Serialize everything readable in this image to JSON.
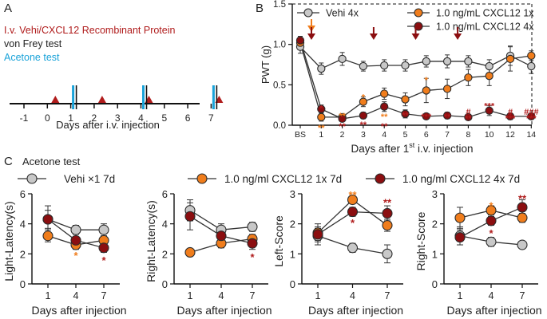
{
  "panels": {
    "a": "A",
    "b": "B",
    "c": "C"
  },
  "timeline": {
    "legend": [
      {
        "text": "I.v. Vehi/CXCL12 Recombinant Protein",
        "color": "#b01c1c"
      },
      {
        "text": "von Frey test",
        "color": "#222222"
      },
      {
        "text": "Acetone test",
        "color": "#1aa3d9"
      }
    ],
    "ticks": [
      "-1",
      "0",
      "1",
      "2",
      "3",
      "4",
      "5",
      "6",
      "7"
    ],
    "injection_days": [
      0,
      2,
      4,
      7
    ],
    "vonfrey_days": [
      1,
      4,
      7
    ],
    "xlabel": "Days after i.v. injection"
  },
  "colors": {
    "vehi": "#c8c8c8",
    "cx1": "#f07d1c",
    "cx4": "#8b0e10",
    "star_orange": "#f07d1c",
    "star_red": "#b01c1c",
    "acetone": "#1aa3d9",
    "injection": "#b01c1c"
  },
  "acetone_title": "Acetone test",
  "legend_c": [
    {
      "key": "vehi",
      "label": "Vehi ×1 7d"
    },
    {
      "key": "cx1",
      "label": "1.0 ng/ml CXCL12 1x 7d"
    },
    {
      "key": "cx4",
      "label": "1.0 ng/ml CXCL12 4x 7d"
    }
  ],
  "chart_data": [
    {
      "id": "pwt",
      "type": "line",
      "title": "",
      "categories": [
        "BS",
        "1",
        "2",
        "3",
        "4",
        "5",
        "6",
        "7",
        "8",
        "10",
        "12",
        "14"
      ],
      "xlabel_prefix": "Days after 1",
      "xlabel_sup": "st",
      "xlabel_suffix": " i.v. injection",
      "ylabel": "PWT (g)",
      "ylim": [
        0,
        1.5
      ],
      "yticks": [
        "0.0",
        "0.5",
        "1.0",
        "1.5"
      ],
      "legend": [
        {
          "key": "vehi",
          "label": "Vehi 4x"
        },
        {
          "key": "cx1",
          "label": "1.0 ng/mL CXCL12 1x"
        },
        {
          "key": "cx4",
          "label": "1.0 ng/mL CXCL12 4x"
        }
      ],
      "series": [
        {
          "key": "vehi",
          "name": "Vehi 4x",
          "values": [
            0.97,
            0.7,
            0.82,
            0.73,
            0.74,
            0.74,
            0.79,
            0.79,
            0.79,
            0.73,
            0.86,
            0.73
          ],
          "errors": [
            0.08,
            0.07,
            0.08,
            0.06,
            0.07,
            0.07,
            0.07,
            0.08,
            0.07,
            0.08,
            0.12,
            0.09
          ]
        },
        {
          "key": "cx1",
          "name": "1.0 ng/mL CXCL12 1x",
          "values": [
            1.02,
            0.1,
            0.1,
            0.29,
            0.39,
            0.32,
            0.43,
            0.45,
            0.59,
            0.61,
            0.82,
            0.86
          ],
          "errors": [
            0.06,
            0.05,
            0.04,
            0.06,
            0.07,
            0.08,
            0.15,
            0.12,
            0.1,
            0.12,
            0.15,
            0.06
          ]
        },
        {
          "key": "cx4",
          "name": "1.0 ng/mL CXCL12 4x",
          "values": [
            1.05,
            0.2,
            0.08,
            0.12,
            0.23,
            0.14,
            0.11,
            0.12,
            0.1,
            0.18,
            0.11,
            0.11
          ],
          "errors": [
            0.05,
            0.05,
            0.03,
            0.04,
            0.06,
            0.05,
            0.03,
            0.04,
            0.03,
            0.06,
            0.04,
            0.03
          ]
        }
      ],
      "injection_arrows": [
        {
          "category": "BS",
          "color": "#f07d1c"
        },
        {
          "category": "BS",
          "color": "#8b0e10"
        },
        {
          "category": "3",
          "color": "#8b0e10"
        },
        {
          "category": "5",
          "color": "#8b0e10"
        },
        {
          "category": "7",
          "color": "#8b0e10"
        }
      ],
      "annotations": [
        {
          "category": "1",
          "y": 0.22,
          "text": "*",
          "color": "#b01c1c"
        },
        {
          "category": "1",
          "y": -0.02,
          "text": "**",
          "color": "#f07d1c"
        },
        {
          "category": "2",
          "y": 0.13,
          "text": "**",
          "color": "#f07d1c"
        },
        {
          "category": "2",
          "y": 0.0,
          "text": "**",
          "color": "#b01c1c"
        },
        {
          "category": "3",
          "y": 0.36,
          "text": "*",
          "color": "#f07d1c"
        },
        {
          "category": "3",
          "y": 0.02,
          "text": "**",
          "color": "#b01c1c"
        },
        {
          "category": "4",
          "y": 0.12,
          "text": "**",
          "color": "#f07d1c"
        },
        {
          "category": "4",
          "y": 0.0,
          "text": "**",
          "color": "#b01c1c"
        },
        {
          "category": "5",
          "y": 0.14,
          "text": "**",
          "color": "#b01c1c"
        },
        {
          "category": "6",
          "y": 0.57,
          "text": "*",
          "color": "#f07d1c"
        },
        {
          "category": "6",
          "y": 0.12,
          "text": "***",
          "color": "#b01c1c"
        },
        {
          "category": "7",
          "y": 0.12,
          "text": "**",
          "color": "#b01c1c"
        },
        {
          "category": "8",
          "y": 0.18,
          "text": "#",
          "color": "#b01c1c"
        },
        {
          "category": "8",
          "y": 0.1,
          "text": "**",
          "color": "#b01c1c"
        },
        {
          "category": "10",
          "y": 0.25,
          "text": "***",
          "color": "#b01c1c"
        },
        {
          "category": "12",
          "y": 0.18,
          "text": "#",
          "color": "#b01c1c"
        },
        {
          "category": "12",
          "y": 0.1,
          "text": "***",
          "color": "#b01c1c"
        },
        {
          "category": "14",
          "y": 0.18,
          "text": "###",
          "color": "#b01c1c"
        },
        {
          "category": "14",
          "y": 0.1,
          "text": "***",
          "color": "#b01c1c"
        }
      ]
    },
    {
      "id": "light_latency",
      "type": "line",
      "categories": [
        "1",
        "4",
        "7"
      ],
      "xlabel": "Days after injection",
      "ylabel": "Light-Latency(s)",
      "ylim": [
        0,
        6
      ],
      "yticks": [
        "0",
        "2",
        "4",
        "6"
      ],
      "series": [
        {
          "key": "vehi",
          "values": [
            4.3,
            3.6,
            3.6
          ],
          "errors": [
            0.9,
            0.3,
            0.4
          ]
        },
        {
          "key": "cx1",
          "values": [
            3.2,
            2.6,
            2.9
          ],
          "errors": [
            0.4,
            0.3,
            0.3
          ]
        },
        {
          "key": "cx4",
          "values": [
            4.3,
            2.9,
            2.4
          ],
          "errors": [
            0.6,
            0.4,
            0.3
          ]
        }
      ],
      "annotations": [
        {
          "category": "4",
          "y": 1.9,
          "text": "*",
          "color": "#f07d1c"
        },
        {
          "category": "7",
          "y": 1.6,
          "text": "*",
          "color": "#b01c1c"
        }
      ]
    },
    {
      "id": "right_latency",
      "type": "line",
      "categories": [
        "1",
        "4",
        "7"
      ],
      "xlabel": "Days after injection",
      "ylabel": "Right-Latency(s)",
      "ylim": [
        0,
        6
      ],
      "yticks": [
        "0",
        "2",
        "4",
        "6"
      ],
      "series": [
        {
          "key": "vehi",
          "values": [
            4.9,
            3.6,
            3.8
          ],
          "errors": [
            0.7,
            0.4,
            0.3
          ]
        },
        {
          "key": "cx1",
          "values": [
            2.1,
            2.7,
            3.0
          ],
          "errors": [
            0.1,
            0.3,
            0.3
          ]
        },
        {
          "key": "cx4",
          "values": [
            4.5,
            3.2,
            2.7
          ],
          "errors": [
            0.9,
            0.5,
            0.4
          ]
        }
      ],
      "annotations": [
        {
          "category": "7",
          "y": 1.8,
          "text": "*",
          "color": "#b01c1c"
        }
      ]
    },
    {
      "id": "left_score",
      "type": "line",
      "categories": [
        "1",
        "4",
        "7"
      ],
      "xlabel": "Days after injection",
      "ylabel": "Left-Score",
      "ylim": [
        0,
        3
      ],
      "yticks": [
        "0",
        "1",
        "2",
        "3"
      ],
      "series": [
        {
          "key": "vehi",
          "values": [
            1.6,
            1.2,
            1.0
          ],
          "errors": [
            0.3,
            0.15,
            0.3
          ]
        },
        {
          "key": "cx1",
          "values": [
            1.7,
            2.8,
            1.95
          ],
          "errors": [
            0.3,
            0.1,
            0.2
          ]
        },
        {
          "key": "cx4",
          "values": [
            1.65,
            2.4,
            2.35
          ],
          "errors": [
            0.2,
            0.15,
            0.25
          ]
        }
      ],
      "annotations": [
        {
          "category": "4",
          "y": 2.97,
          "text": "**",
          "color": "#f07d1c"
        },
        {
          "category": "4",
          "y": 2.05,
          "text": "*",
          "color": "#b01c1c"
        },
        {
          "category": "7",
          "y": 2.72,
          "text": "**",
          "color": "#b01c1c"
        }
      ]
    },
    {
      "id": "right_score",
      "type": "line",
      "categories": [
        "1",
        "4",
        "7"
      ],
      "xlabel": "Days after injection",
      "ylabel": "Right-Score",
      "ylim": [
        0,
        3
      ],
      "yticks": [
        "0",
        "1",
        "2",
        "3"
      ],
      "series": [
        {
          "key": "vehi",
          "values": [
            1.6,
            1.4,
            1.3
          ],
          "errors": [
            0.3,
            0.15,
            0.05
          ]
        },
        {
          "key": "cx1",
          "values": [
            2.2,
            2.45,
            2.2
          ],
          "errors": [
            0.35,
            0.15,
            0.15
          ]
        },
        {
          "key": "cx4",
          "values": [
            1.55,
            2.1,
            2.55
          ],
          "errors": [
            0.25,
            0.15,
            0.25
          ]
        }
      ],
      "annotations": [
        {
          "category": "4",
          "y": 2.62,
          "text": "*",
          "color": "#f07d1c"
        },
        {
          "category": "4",
          "y": 1.7,
          "text": "*",
          "color": "#b01c1c"
        },
        {
          "category": "7",
          "y": 2.85,
          "text": "**",
          "color": "#b01c1c"
        }
      ]
    }
  ]
}
